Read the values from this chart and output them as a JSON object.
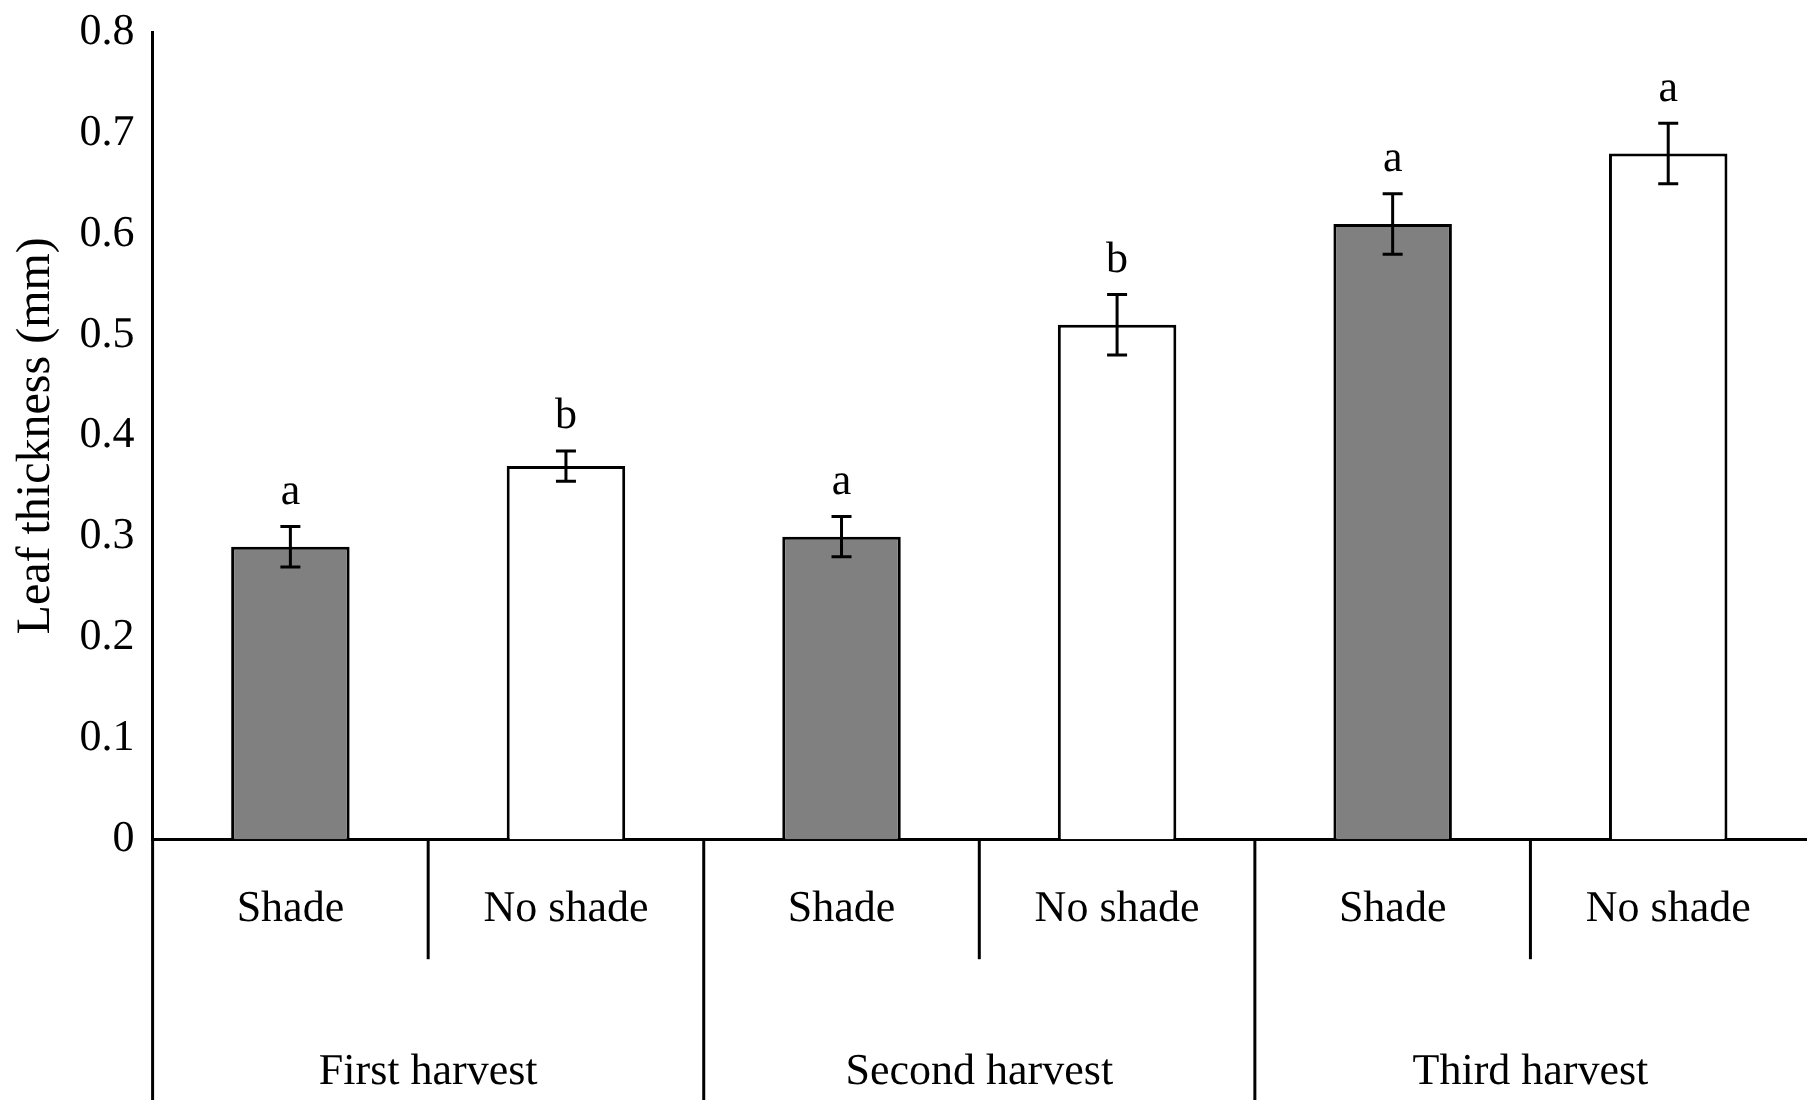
{
  "chart_data": {
    "type": "bar",
    "ylabel": "Leaf thickness (mm)",
    "categories": [
      "Shade",
      "No shade",
      "Shade",
      "No shade",
      "Shade",
      "No shade"
    ],
    "values": [
      0.29,
      0.37,
      0.3,
      0.51,
      0.61,
      0.68
    ],
    "colors": [
      "#808080",
      "#ffffff",
      "#808080",
      "#ffffff",
      "#808080",
      "#ffffff"
    ],
    "errors": [
      0.02,
      0.015,
      0.02,
      0.03,
      0.03,
      0.03
    ],
    "value_labels": [
      "a",
      "b",
      "a",
      "b",
      "a",
      "a"
    ],
    "annotations": [
      "First harvest",
      "Second harvest",
      "Third harvest"
    ],
    "ylim": [
      0,
      0.8
    ],
    "yticks": [
      0,
      0.1,
      0.2,
      0.3,
      0.4,
      0.5,
      0.6,
      0.7,
      0.8
    ],
    "grid": false,
    "legend": false
  }
}
